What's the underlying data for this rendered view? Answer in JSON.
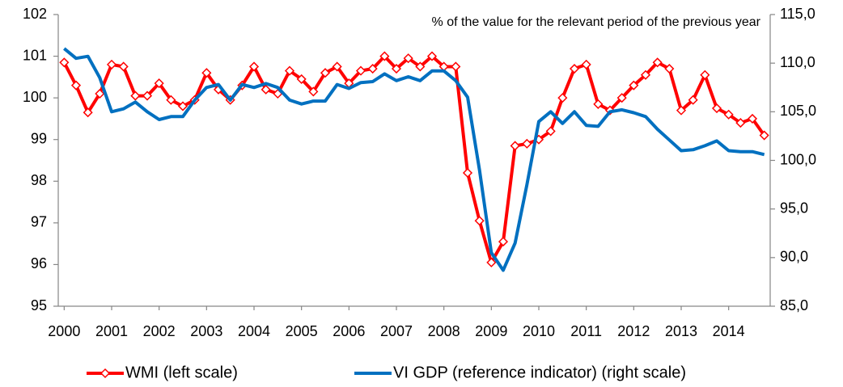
{
  "chart_data": {
    "type": "line",
    "annotation": "% of the value for the relevant period of the previous year",
    "categories": [
      "2000",
      null,
      null,
      null,
      "2001",
      null,
      null,
      null,
      "2002",
      null,
      null,
      null,
      "2003",
      null,
      null,
      null,
      "2004",
      null,
      null,
      null,
      "2005",
      null,
      null,
      null,
      "2006",
      null,
      null,
      null,
      "2007",
      null,
      null,
      null,
      "2008",
      null,
      null,
      null,
      "2009",
      null,
      null,
      null,
      "2010",
      null,
      null,
      null,
      "2011",
      null,
      null,
      null,
      "2012",
      null,
      null,
      null,
      "2013",
      null,
      null,
      null,
      "2014",
      null,
      null,
      null
    ],
    "series": [
      {
        "name": "WMI (left scale)",
        "color": "#ff0000",
        "marker": "diamond",
        "values": [
          100.85,
          100.3,
          99.65,
          100.1,
          100.8,
          100.75,
          100.05,
          100.05,
          100.35,
          99.95,
          99.8,
          99.95,
          100.6,
          100.2,
          99.95,
          100.3,
          100.75,
          100.2,
          100.1,
          100.65,
          100.45,
          100.15,
          100.6,
          100.75,
          100.35,
          100.65,
          100.7,
          101.0,
          100.7,
          100.95,
          100.75,
          101.0,
          100.75,
          100.75,
          98.2,
          97.05,
          96.05,
          96.55,
          98.85,
          98.9,
          99.0,
          99.2,
          100.0,
          100.7,
          100.8,
          99.85,
          99.7,
          100.0,
          100.3,
          100.55,
          100.85,
          100.7,
          99.7,
          99.95,
          100.55,
          99.75,
          99.6,
          99.4,
          99.5,
          99.1
        ]
      },
      {
        "name": "VI GDP (reference indicator) (right scale)",
        "color": "#0070c0",
        "axis": "y2",
        "values": [
          111.5,
          110.5,
          110.7,
          108.5,
          105.0,
          105.3,
          106.0,
          105.0,
          104.2,
          104.5,
          104.5,
          106.2,
          107.5,
          107.8,
          106.2,
          107.8,
          107.5,
          107.9,
          107.5,
          106.2,
          105.8,
          106.1,
          106.1,
          107.8,
          107.4,
          108.0,
          108.1,
          108.9,
          108.2,
          108.6,
          108.2,
          109.2,
          109.2,
          108.2,
          106.5,
          99.0,
          90.5,
          88.7,
          91.5,
          97.5,
          104.0,
          105.0,
          103.8,
          105.0,
          103.6,
          103.5,
          105.0,
          105.2,
          104.9,
          104.5,
          103.2,
          102.1,
          101.0,
          101.1,
          101.5,
          102.0,
          101.0,
          100.9,
          100.9,
          100.6
        ]
      }
    ],
    "ylim": [
      95,
      102
    ],
    "yticks": [
      95,
      96,
      97,
      98,
      99,
      100,
      101,
      102
    ],
    "y2lim": [
      85,
      115
    ],
    "y2ticks": [
      {
        "value": 85,
        "label": "85,0"
      },
      {
        "value": 90,
        "label": "90,0"
      },
      {
        "value": 95,
        "label": "95,0"
      },
      {
        "value": 100,
        "label": "100,0"
      },
      {
        "value": 105,
        "label": "105,0"
      },
      {
        "value": 110,
        "label": "110,0"
      },
      {
        "value": 115,
        "label": "115,0"
      }
    ],
    "grid": false,
    "legend": "bottom"
  }
}
